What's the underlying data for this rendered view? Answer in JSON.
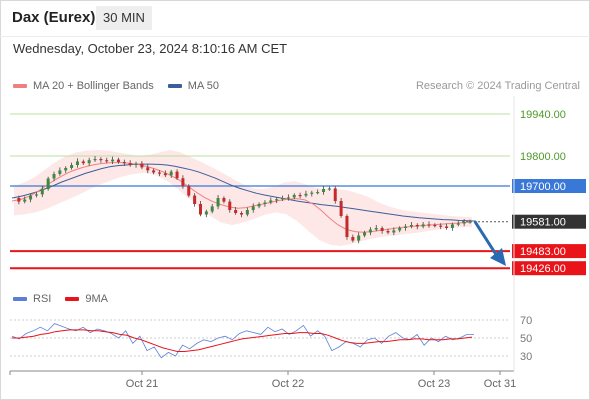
{
  "header": {
    "title": "Dax (Eurex)",
    "timeframe": "30 MIN",
    "datetime": "Wednesday, October 23, 2024 8:10:16 AM CET"
  },
  "legend": {
    "ma20_label": "MA 20 + Bollinger Bands",
    "ma50_label": "MA 50",
    "copyright": "Research © 2024 Trading Central"
  },
  "rsi_legend": {
    "rsi_label": "RSI",
    "ma_label": "9MA"
  },
  "colors": {
    "ma20": "#f08080",
    "ma50": "#3a5f9a",
    "bollinger_fill": "#fde3e3",
    "resistance_light": "#b8e0a0",
    "pivot": "#3a78d8",
    "support": "#e8141a",
    "last_price_tag": "#333333",
    "arrow": "#2a6ab0",
    "candle_up": "#3c8a3c",
    "candle_down": "#c42a2a",
    "rsi": "#5b7fd6",
    "rsi_ma": "#e8141a"
  },
  "chart_data": {
    "type": "candlestick",
    "y_range": [
      19380,
      20000
    ],
    "x_labels": [
      "Oct 21",
      "Oct 22",
      "Oct 23",
      "Oct 31"
    ],
    "levels": [
      {
        "name": "resistance",
        "value": 19940.0,
        "label": "19940.00",
        "style": "light-green"
      },
      {
        "name": "resistance",
        "value": 19800.0,
        "label": "19800.00",
        "style": "light-green"
      },
      {
        "name": "pivot",
        "value": 19700.0,
        "label": "19700.00",
        "style": "blue"
      },
      {
        "name": "last",
        "value": 19581.0,
        "label": "19581.00",
        "style": "dark"
      },
      {
        "name": "support",
        "value": 19483.0,
        "label": "19483.00",
        "style": "red"
      },
      {
        "name": "support",
        "value": 19426.0,
        "label": "19426.00",
        "style": "red"
      }
    ],
    "price_series": [
      19660,
      19648,
      19655,
      19668,
      19672,
      19690,
      19725,
      19740,
      19752,
      19760,
      19770,
      19782,
      19776,
      19786,
      19790,
      19786,
      19782,
      19788,
      19780,
      19776,
      19770,
      19775,
      19762,
      19752,
      19745,
      19742,
      19736,
      19748,
      19726,
      19700,
      19668,
      19640,
      19605,
      19615,
      19632,
      19660,
      19648,
      19620,
      19610,
      19605,
      19620,
      19632,
      19640,
      19645,
      19652,
      19656,
      19660,
      19662,
      19670,
      19668,
      19674,
      19678,
      19680,
      19690,
      19692,
      19650,
      19600,
      19530,
      19518,
      19535,
      19545,
      19555,
      19560,
      19550,
      19545,
      19552,
      19560,
      19565,
      19570,
      19565,
      19572,
      19570,
      19568,
      19565,
      19560,
      19572,
      19575,
      19580,
      19582
    ],
    "ma50_series": [
      19660,
      19665,
      19672,
      19680,
      19690,
      19700,
      19712,
      19722,
      19732,
      19742,
      19750,
      19758,
      19764,
      19768,
      19770,
      19772,
      19773,
      19773,
      19772,
      19770,
      19766,
      19760,
      19754,
      19746,
      19736,
      19726,
      19714,
      19702,
      19692,
      19684,
      19676,
      19670,
      19665,
      19660,
      19655,
      19650,
      19646,
      19642,
      19638,
      19635,
      19632,
      19628,
      19624,
      19620,
      19616,
      19612,
      19608,
      19604,
      19600,
      19597,
      19594,
      19592,
      19590,
      19588,
      19587,
      19585,
      19584,
      19583
    ],
    "ma20_series": [
      19650,
      19655,
      19665,
      19680,
      19700,
      19718,
      19734,
      19748,
      19758,
      19766,
      19772,
      19776,
      19778,
      19778,
      19776,
      19772,
      19766,
      19758,
      19748,
      19735,
      19720,
      19700,
      19680,
      19662,
      19648,
      19638,
      19630,
      19626,
      19628,
      19634,
      19640,
      19646,
      19652,
      19656,
      19658,
      19654,
      19640,
      19618,
      19592,
      19570,
      19555,
      19548,
      19546,
      19548,
      19552,
      19556,
      19560,
      19563,
      19566,
      19568,
      19570,
      19572,
      19574,
      19576,
      19578,
      19580
    ],
    "bollinger_upper": [
      19700,
      19712,
      19730,
      19755,
      19780,
      19800,
      19812,
      19818,
      19820,
      19818,
      19812,
      19806,
      19800,
      19804,
      19812,
      19820,
      19812,
      19796,
      19780,
      19762,
      19744,
      19724,
      19706,
      19692,
      19690,
      19698,
      19712,
      19716,
      19706,
      19694,
      19690,
      19690,
      19686,
      19676,
      19664,
      19646,
      19632,
      19622,
      19616,
      19612,
      19608,
      19604,
      19600,
      19598,
      19596
    ],
    "bollinger_lower": [
      19602,
      19606,
      19612,
      19624,
      19640,
      19656,
      19672,
      19690,
      19706,
      19720,
      19732,
      19740,
      19744,
      19736,
      19718,
      19690,
      19660,
      19630,
      19600,
      19578,
      19570,
      19578,
      19590,
      19604,
      19612,
      19606,
      19582,
      19550,
      19520,
      19504,
      19500,
      19508,
      19518,
      19526,
      19532,
      19536,
      19540,
      19544,
      19550,
      19556,
      19560,
      19562,
      19564
    ],
    "forecast_arrow": {
      "from": 19581,
      "to": 19440
    },
    "rsi": {
      "levels": [
        70,
        50,
        30
      ],
      "rsi_series": [
        52,
        49,
        55,
        58,
        62,
        58,
        66,
        63,
        60,
        58,
        62,
        56,
        60,
        58,
        55,
        50,
        58,
        44,
        52,
        36,
        40,
        28,
        34,
        30,
        42,
        38,
        44,
        48,
        46,
        50,
        52,
        48,
        55,
        58,
        56,
        54,
        62,
        57,
        60,
        54,
        58,
        64,
        52,
        58,
        52,
        36,
        40,
        46,
        44,
        40,
        48,
        50,
        44,
        52,
        56,
        50,
        48,
        54,
        42,
        50,
        46,
        52,
        48,
        50,
        54,
        54
      ],
      "ma_series": [
        50,
        50,
        51,
        52,
        54,
        55,
        57,
        58,
        59,
        59,
        59,
        58,
        58,
        57,
        56,
        54,
        53,
        50,
        48,
        45,
        42,
        39,
        37,
        35,
        35,
        36,
        37,
        39,
        41,
        43,
        45,
        47,
        49,
        50,
        51,
        52,
        53,
        54,
        55,
        55,
        56,
        56,
        55,
        55,
        53,
        50,
        47,
        45,
        44,
        44,
        45,
        46,
        46,
        47,
        48,
        48,
        49,
        49,
        48,
        48,
        48,
        49,
        49,
        50,
        51
      ]
    }
  }
}
